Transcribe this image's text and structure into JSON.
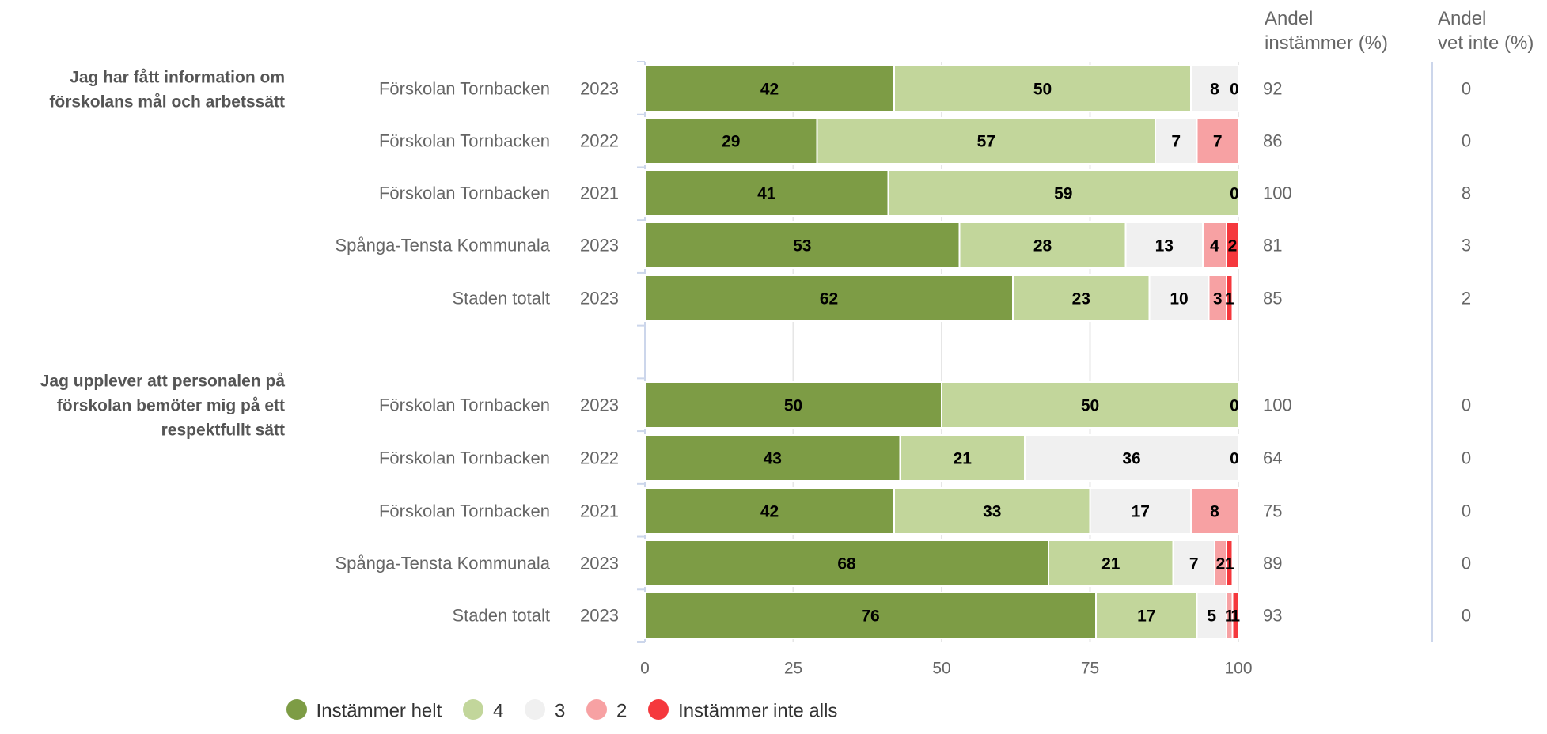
{
  "chart_data": {
    "type": "bar",
    "orientation": "horizontal",
    "stacked": "percent",
    "xlim": [
      0,
      100
    ],
    "xticks": [
      "0",
      "25",
      "50",
      "75",
      "100"
    ],
    "legend_position": "bottom",
    "series": [
      {
        "name": "Instämmer helt",
        "color": "#7d9c45"
      },
      {
        "name": "4",
        "color": "#c2d69b"
      },
      {
        "name": "3",
        "color": "#f0f0f0"
      },
      {
        "name": "2",
        "color": "#f7a1a3"
      },
      {
        "name": "Instämmer inte alls",
        "color": "#f5383d"
      }
    ],
    "column_headers": {
      "agree": [
        "Andel",
        "instämmer (%)"
      ],
      "dont_know": [
        "Andel",
        "vet inte (%)"
      ]
    },
    "groups": [
      {
        "question": [
          "Jag har fått information om",
          "förskolans mål och arbetssätt"
        ],
        "rows": [
          {
            "label": "Förskolan Tornbacken",
            "year": "2023",
            "values": [
              42,
              50,
              8,
              0,
              0
            ],
            "agree": "92",
            "dont_know": "0"
          },
          {
            "label": "Förskolan Tornbacken",
            "year": "2022",
            "values": [
              29,
              57,
              7,
              7,
              0
            ],
            "agree": "86",
            "dont_know": "0"
          },
          {
            "label": "Förskolan Tornbacken",
            "year": "2021",
            "values": [
              41,
              59,
              0,
              0,
              0
            ],
            "agree": "100",
            "dont_know": "8"
          },
          {
            "label": "Spånga-Tensta Kommunala",
            "year": "2023",
            "values": [
              53,
              28,
              13,
              4,
              2
            ],
            "agree": "81",
            "dont_know": "3"
          },
          {
            "label": "Staden totalt",
            "year": "2023",
            "values": [
              62,
              23,
              10,
              3,
              1
            ],
            "agree": "85",
            "dont_know": "2"
          }
        ]
      },
      {
        "question": [
          "Jag upplever att personalen på",
          "förskolan bemöter mig på ett",
          "respektfullt sätt"
        ],
        "rows": [
          {
            "label": "Förskolan Tornbacken",
            "year": "2023",
            "values": [
              50,
              50,
              0,
              0,
              0
            ],
            "agree": "100",
            "dont_know": "0"
          },
          {
            "label": "Förskolan Tornbacken",
            "year": "2022",
            "values": [
              43,
              21,
              36,
              0,
              0
            ],
            "agree": "64",
            "dont_know": "0"
          },
          {
            "label": "Förskolan Tornbacken",
            "year": "2021",
            "values": [
              42,
              33,
              17,
              8,
              0
            ],
            "agree": "75",
            "dont_know": "0"
          },
          {
            "label": "Spånga-Tensta Kommunala",
            "year": "2023",
            "values": [
              68,
              21,
              7,
              2,
              1
            ],
            "agree": "89",
            "dont_know": "0"
          },
          {
            "label": "Staden totalt",
            "year": "2023",
            "values": [
              76,
              17,
              5,
              1,
              1
            ],
            "agree": "93",
            "dont_know": "0"
          }
        ]
      }
    ]
  }
}
